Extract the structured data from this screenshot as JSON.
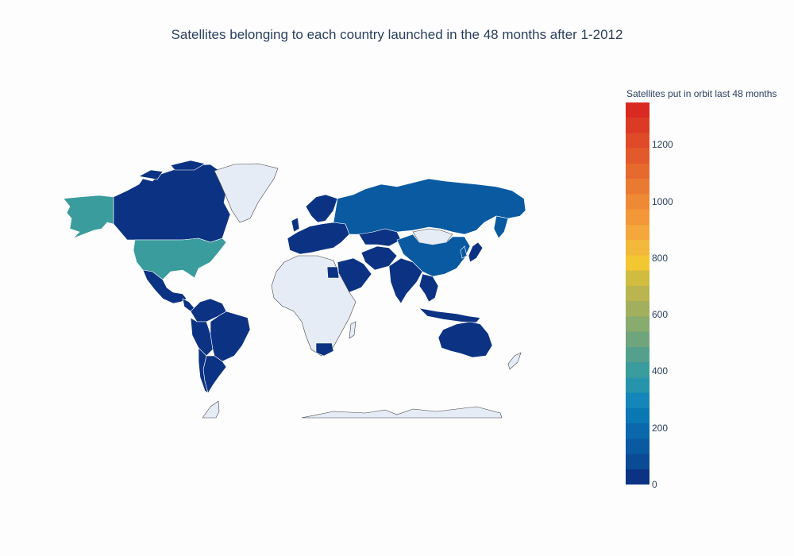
{
  "title": "Satellites belonging to each country launched in the 48 months after 1-2012",
  "colorbar": {
    "title": "Satellites put in orbit last 48 months",
    "min": 0,
    "max": 1350,
    "ticks": [
      {
        "label": "0",
        "value": 0
      },
      {
        "label": "200",
        "value": 200
      },
      {
        "label": "400",
        "value": 400
      },
      {
        "label": "600",
        "value": 600
      },
      {
        "label": "800",
        "value": 800
      },
      {
        "label": "1000",
        "value": 1000
      },
      {
        "label": "1200",
        "value": 1200
      }
    ],
    "colors": [
      "#0c3383",
      "#0b4b95",
      "#0a5aa2",
      "#0a68ab",
      "#0a78b2",
      "#1486b9",
      "#2694ab",
      "#3a9c9c",
      "#55a08c",
      "#6fa57c",
      "#88ab6e",
      "#a2b05e",
      "#bbb54f",
      "#d0bc3f",
      "#f2c732",
      "#f2b83a",
      "#f4a73a",
      "#f39838",
      "#ee8a35",
      "#ea7a31",
      "#e6692e",
      "#e2592b",
      "#df4a28",
      "#db3a25",
      "#d92a21"
    ]
  },
  "map": {
    "land_color": "#e5ecf6",
    "border_color": "#444444",
    "countries": [
      {
        "name": "Canada",
        "value": 10
      },
      {
        "name": "United States",
        "value": 380
      },
      {
        "name": "Alaska",
        "value": 380
      },
      {
        "name": "Mexico",
        "value": 5
      },
      {
        "name": "Greenland",
        "value": null
      },
      {
        "name": "Brazil",
        "value": 10
      },
      {
        "name": "Argentina",
        "value": 5
      },
      {
        "name": "Peru",
        "value": 2
      },
      {
        "name": "Colombia",
        "value": 1
      },
      {
        "name": "Venezuela",
        "value": 1
      },
      {
        "name": "Chile",
        "value": 2
      },
      {
        "name": "Bolivia",
        "value": 1
      },
      {
        "name": "Russia",
        "value": 150
      },
      {
        "name": "China",
        "value": 120
      },
      {
        "name": "India",
        "value": 20
      },
      {
        "name": "Kazakhstan",
        "value": 3
      },
      {
        "name": "Mongolia",
        "value": null
      },
      {
        "name": "Japan",
        "value": 50
      },
      {
        "name": "Australia",
        "value": 10
      },
      {
        "name": "Saudi Arabia",
        "value": 2
      },
      {
        "name": "Iran",
        "value": 3
      },
      {
        "name": "Africa",
        "value": null
      },
      {
        "name": "South Africa",
        "value": 3
      },
      {
        "name": "Egypt",
        "value": 2
      },
      {
        "name": "Europe",
        "value": 10
      },
      {
        "name": "Scandinavia",
        "value": 5
      },
      {
        "name": "Southeast Asia",
        "value": 5
      },
      {
        "name": "Indonesia",
        "value": 5
      },
      {
        "name": "Antarctica",
        "value": null
      }
    ]
  }
}
